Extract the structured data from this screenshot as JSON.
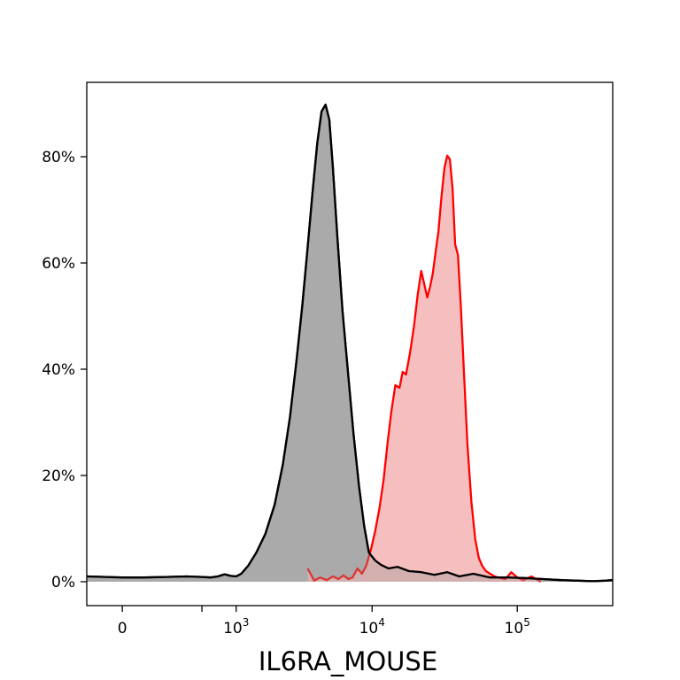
{
  "chart_data": {
    "type": "area",
    "title": "",
    "xlabel": "IL6RA_MOUSE",
    "ylabel": "",
    "x_scale": "biexponential",
    "xlim": [
      -150,
      450000
    ],
    "ylim": [
      -4.5,
      94
    ],
    "grid": false,
    "legend": "none",
    "x_ticks": [
      {
        "value": 0,
        "label": "0"
      },
      {
        "value": 1000,
        "label": "10^3"
      },
      {
        "value": 10000,
        "label": "10^4"
      },
      {
        "value": 100000,
        "label": "10^5"
      }
    ],
    "x_minor_ticks": [
      500
    ],
    "y_ticks": [
      {
        "value": 0,
        "label": "0%"
      },
      {
        "value": 20,
        "label": "20%"
      },
      {
        "value": 40,
        "label": "40%"
      },
      {
        "value": 60,
        "label": "60%"
      },
      {
        "value": 80,
        "label": "80%"
      }
    ],
    "series": [
      {
        "color": "#000000",
        "fill": "#b3b3b3",
        "x": [
          -150,
          -60,
          0,
          80,
          200,
          350,
          500,
          600,
          700,
          800,
          900,
          1000,
          1100,
          1250,
          1450,
          1700,
          2000,
          2300,
          2600,
          2900,
          3200,
          3500,
          3800,
          4100,
          4400,
          4700,
          5000,
          5300,
          5700,
          6200,
          6800,
          7400,
          8100,
          8800,
          9500,
          10500,
          11500,
          13000,
          15000,
          18000,
          22000,
          27000,
          33000,
          40000,
          50000,
          65000,
          85000,
          110000,
          150000,
          200000,
          260000,
          330000,
          400000,
          450000
        ],
        "values": [
          1.0,
          0.9,
          0.8,
          0.8,
          0.9,
          1.0,
          0.9,
          0.8,
          1.0,
          1.4,
          1.1,
          1.0,
          1.5,
          3.0,
          5.5,
          9.0,
          14.5,
          22.0,
          31.0,
          41.5,
          52.0,
          63.0,
          73.5,
          82.5,
          88.5,
          89.8,
          87.0,
          78.0,
          65.0,
          51.0,
          39.0,
          28.0,
          18.0,
          10.5,
          5.5,
          4.0,
          3.2,
          2.5,
          2.8,
          2.0,
          1.8,
          1.3,
          1.8,
          1.0,
          1.5,
          0.8,
          0.8,
          0.7,
          0.5,
          0.3,
          0.2,
          0.1,
          0.2,
          0.3
        ]
      },
      {
        "color": "#ff0000",
        "fill": "#f5bcbc",
        "x": [
          3500,
          3900,
          4300,
          4800,
          5300,
          5800,
          6300,
          6800,
          7300,
          7900,
          8500,
          9100,
          9800,
          10500,
          11200,
          12000,
          12800,
          13600,
          14500,
          15500,
          16300,
          17200,
          18300,
          19500,
          20700,
          21900,
          23000,
          24100,
          25200,
          26300,
          27500,
          28800,
          30200,
          31700,
          33100,
          34500,
          36000,
          37500,
          39200,
          41000,
          43000,
          45500,
          48500,
          51500,
          54500,
          57500,
          61000,
          65000,
          70000,
          76000,
          83000,
          91000,
          100000,
          110000,
          125000,
          145000
        ],
        "values": [
          2.5,
          0.2,
          0.8,
          0.3,
          1.0,
          0.5,
          1.2,
          0.5,
          0.8,
          2.5,
          1.5,
          3.0,
          6.0,
          9.5,
          13.5,
          19.0,
          26.0,
          32.0,
          37.0,
          36.5,
          39.5,
          39.0,
          43.0,
          48.0,
          54.0,
          58.5,
          56.0,
          53.5,
          55.5,
          58.0,
          62.0,
          66.0,
          72.5,
          78.0,
          80.2,
          79.5,
          74.0,
          63.5,
          61.5,
          52.0,
          40.0,
          26.0,
          15.0,
          8.0,
          4.5,
          3.0,
          2.0,
          1.5,
          1.0,
          0.7,
          0.5,
          1.8,
          0.8,
          0.3,
          1.0,
          0.0
        ]
      }
    ]
  }
}
